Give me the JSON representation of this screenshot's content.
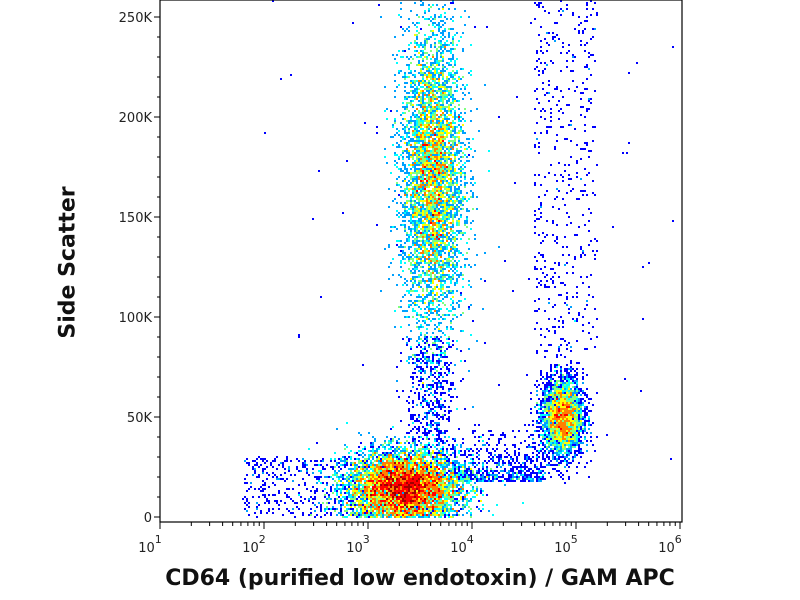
{
  "chart_data": {
    "type": "heatmap",
    "subtype": "flow cytometry density dot plot",
    "xlabel": "CD64 (purified low endotoxin) / GAM APC",
    "ylabel": "Side Scatter",
    "x_scale": "log",
    "xlim": [
      10,
      1000000
    ],
    "x_ticks": [
      {
        "base": "10",
        "exp": "1"
      },
      {
        "base": "10",
        "exp": "2"
      },
      {
        "base": "10",
        "exp": "3"
      },
      {
        "base": "10",
        "exp": "4"
      },
      {
        "base": "10",
        "exp": "5"
      },
      {
        "base": "10",
        "exp": "6"
      }
    ],
    "ylim": [
      0,
      262144
    ],
    "y_ticks": [
      "0",
      "50K",
      "100K",
      "150K",
      "200K",
      "250K"
    ],
    "y_tick_values": [
      0,
      50000,
      100000,
      150000,
      200000,
      250000
    ],
    "colormap": [
      "#00008f",
      "#0000ff",
      "#00a0ff",
      "#00ffff",
      "#7fff7f",
      "#ffff00",
      "#ff8000",
      "#ff0000",
      "#a00000"
    ],
    "grid": false,
    "populations": [
      {
        "x_center": 2200,
        "y_center": 15000,
        "x_range": [
          300,
          8000
        ],
        "y_range": [
          0,
          40000
        ],
        "relative_density": "highest"
      },
      {
        "x_center": 4200,
        "y_center": 170000,
        "x_range": [
          1500,
          10000
        ],
        "y_range": [
          80000,
          262144
        ],
        "relative_density": "high"
      },
      {
        "x_center": 74000,
        "y_center": 50000,
        "x_range": [
          35000,
          150000
        ],
        "y_range": [
          25000,
          75000
        ],
        "relative_density": "medium"
      },
      {
        "x_center": 70000,
        "y_center": 170000,
        "x_range": [
          30000,
          150000
        ],
        "y_range": [
          80000,
          262144
        ],
        "relative_density": "sparse"
      }
    ]
  }
}
